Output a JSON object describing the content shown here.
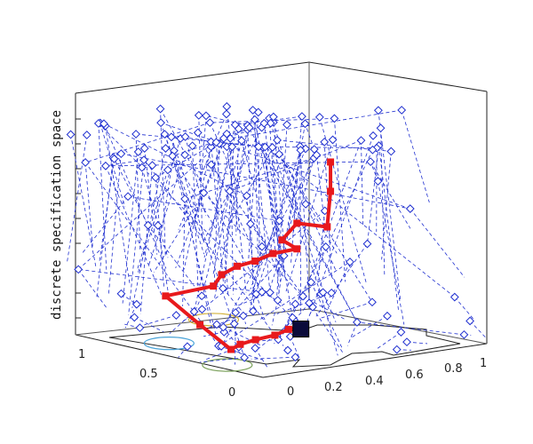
{
  "chart_data": {
    "type": "scatter",
    "projection": "3d",
    "title": "",
    "zlabel": "discrete specification space",
    "xlabel": "",
    "ylabel": "",
    "x_ticks": [
      "0",
      "0.2",
      "0.4",
      "0.6",
      "0.8",
      "1"
    ],
    "y_ticks": [
      "0",
      "0.5",
      "1"
    ],
    "xlim": [
      0,
      1
    ],
    "ylim": [
      0,
      1
    ],
    "zlim": [
      0,
      10
    ],
    "grid": false,
    "colors": {
      "tree": "#1f2fd0",
      "path": "#e8191c",
      "goal": "#0b0b3a",
      "ellipse_blue": "#4aa3d8",
      "ellipse_yellow": "#d4b33c",
      "ellipse_green": "#7aa05a"
    },
    "floor_ellipses": [
      {
        "x": 0.15,
        "y": 0.68,
        "color": "#4aa3d8"
      },
      {
        "x": 0.55,
        "y": 0.92,
        "color": "#d4b33c"
      },
      {
        "x": 0.05,
        "y": 0.25,
        "color": "#7aa05a"
      }
    ],
    "path": [
      {
        "x": 0.63,
        "y": 0.55,
        "z": 0.25
      },
      {
        "x": 0.55,
        "y": 0.52,
        "z": 0.3
      },
      {
        "x": 0.43,
        "y": 0.45,
        "z": 0.35
      },
      {
        "x": 0.31,
        "y": 0.41,
        "z": 0.4
      },
      {
        "x": 0.2,
        "y": 0.36,
        "z": 0.45
      },
      {
        "x": 0.1,
        "y": 0.29,
        "z": 0.5
      },
      {
        "x": 0.02,
        "y": 0.36,
        "z": 1.5
      },
      {
        "x": -0.05,
        "y": 0.46,
        "z": 2.6
      },
      {
        "x": 0.08,
        "y": 0.36,
        "z": 3.0
      },
      {
        "x": 0.15,
        "y": 0.4,
        "z": 3.3
      },
      {
        "x": 0.22,
        "y": 0.4,
        "z": 3.55
      },
      {
        "x": 0.3,
        "y": 0.4,
        "z": 3.65
      },
      {
        "x": 0.38,
        "y": 0.4,
        "z": 3.85
      },
      {
        "x": 0.47,
        "y": 0.38,
        "z": 3.95
      },
      {
        "x": 0.42,
        "y": 0.4,
        "z": 4.35
      },
      {
        "x": 0.47,
        "y": 0.38,
        "z": 5.0
      },
      {
        "x": 0.58,
        "y": 0.35,
        "z": 4.75
      },
      {
        "x": 0.62,
        "y": 0.38,
        "z": 6.1
      },
      {
        "x": 0.62,
        "y": 0.38,
        "z": 7.3
      }
    ],
    "goal": {
      "x": 0.63,
      "y": 0.55,
      "z": 0.15
    }
  }
}
